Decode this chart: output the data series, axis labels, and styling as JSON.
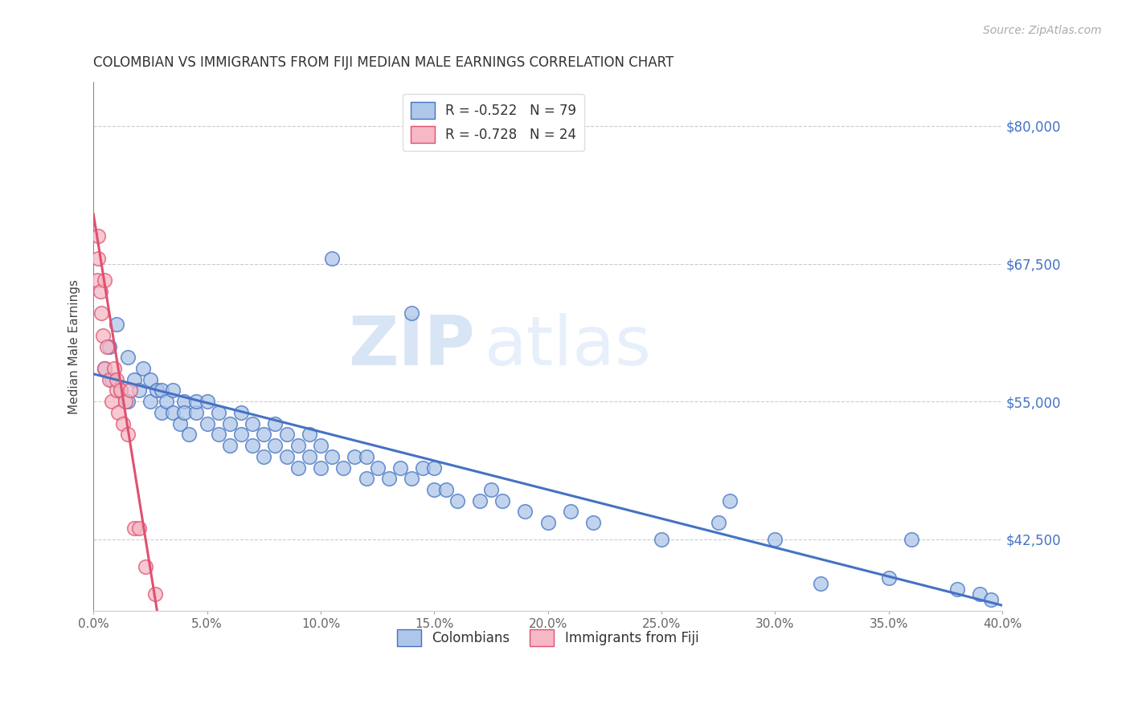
{
  "title": "COLOMBIAN VS IMMIGRANTS FROM FIJI MEDIAN MALE EARNINGS CORRELATION CHART",
  "source": "Source: ZipAtlas.com",
  "xlabel_ticks": [
    "0.0%",
    "5.0%",
    "10.0%",
    "15.0%",
    "20.0%",
    "25.0%",
    "30.0%",
    "35.0%",
    "40.0%"
  ],
  "xlabel_vals": [
    0.0,
    5.0,
    10.0,
    15.0,
    20.0,
    25.0,
    30.0,
    35.0,
    40.0
  ],
  "ylabel_ticks": [
    "$42,500",
    "$55,000",
    "$67,500",
    "$80,000"
  ],
  "ylabel_vals": [
    42500,
    55000,
    67500,
    80000
  ],
  "xlim": [
    0.0,
    40.0
  ],
  "ylim": [
    36000,
    84000
  ],
  "ylabel_label": "Median Male Earnings",
  "legend_label_blue": "R = -0.522   N = 79",
  "legend_label_pink": "R = -0.728   N = 24",
  "legend_bottom_blue": "Colombians",
  "legend_bottom_pink": "Immigrants from Fiji",
  "blue_color": "#aec6e8",
  "pink_color": "#f5b8c4",
  "line_blue": "#4472c4",
  "line_pink": "#e05070",
  "watermark_zip": "ZIP",
  "watermark_atlas": "atlas",
  "colombians_x": [
    0.5,
    0.7,
    0.8,
    1.0,
    1.2,
    1.5,
    1.5,
    1.8,
    2.0,
    2.2,
    2.5,
    2.5,
    2.8,
    3.0,
    3.0,
    3.2,
    3.5,
    3.5,
    3.8,
    4.0,
    4.0,
    4.2,
    4.5,
    4.5,
    5.0,
    5.0,
    5.5,
    5.5,
    6.0,
    6.0,
    6.5,
    6.5,
    7.0,
    7.0,
    7.5,
    7.5,
    8.0,
    8.0,
    8.5,
    8.5,
    9.0,
    9.0,
    9.5,
    9.5,
    10.0,
    10.0,
    10.5,
    11.0,
    11.5,
    12.0,
    12.0,
    12.5,
    13.0,
    13.5,
    14.0,
    14.5,
    15.0,
    15.0,
    15.5,
    16.0,
    17.0,
    17.5,
    18.0,
    19.0,
    20.0,
    21.0,
    22.0,
    25.0,
    27.5,
    28.0,
    30.0,
    32.0,
    35.0,
    36.0,
    38.0,
    39.0,
    39.5,
    10.5,
    14.0
  ],
  "colombians_y": [
    58000,
    60000,
    57000,
    62000,
    56000,
    59000,
    55000,
    57000,
    56000,
    58000,
    55000,
    57000,
    56000,
    54000,
    56000,
    55000,
    54000,
    56000,
    53000,
    55000,
    54000,
    52000,
    54000,
    55000,
    53000,
    55000,
    52000,
    54000,
    51000,
    53000,
    52000,
    54000,
    51000,
    53000,
    52000,
    50000,
    51000,
    53000,
    50000,
    52000,
    51000,
    49000,
    50000,
    52000,
    49000,
    51000,
    50000,
    49000,
    50000,
    48000,
    50000,
    49000,
    48000,
    49000,
    48000,
    49000,
    47000,
    49000,
    47000,
    46000,
    46000,
    47000,
    46000,
    45000,
    44000,
    45000,
    44000,
    42500,
    44000,
    46000,
    42500,
    38500,
    39000,
    42500,
    38000,
    37500,
    37000,
    68000,
    63000
  ],
  "fiji_x": [
    0.15,
    0.2,
    0.3,
    0.35,
    0.4,
    0.5,
    0.6,
    0.7,
    0.8,
    0.9,
    1.0,
    1.0,
    1.1,
    1.2,
    1.3,
    1.4,
    1.5,
    1.6,
    1.8,
    2.0,
    2.3,
    0.2,
    0.5,
    2.7
  ],
  "fiji_y": [
    66000,
    68000,
    65000,
    63000,
    61000,
    58000,
    60000,
    57000,
    55000,
    58000,
    56000,
    57000,
    54000,
    56000,
    53000,
    55000,
    52000,
    56000,
    43500,
    43500,
    40000,
    70000,
    66000,
    37500
  ],
  "blue_line_x0": 0.0,
  "blue_line_y0": 57500,
  "blue_line_x1": 40.0,
  "blue_line_y1": 36500,
  "pink_line_x0": 0.0,
  "pink_line_y0": 72000,
  "pink_line_x1": 2.8,
  "pink_line_y1": 36000
}
